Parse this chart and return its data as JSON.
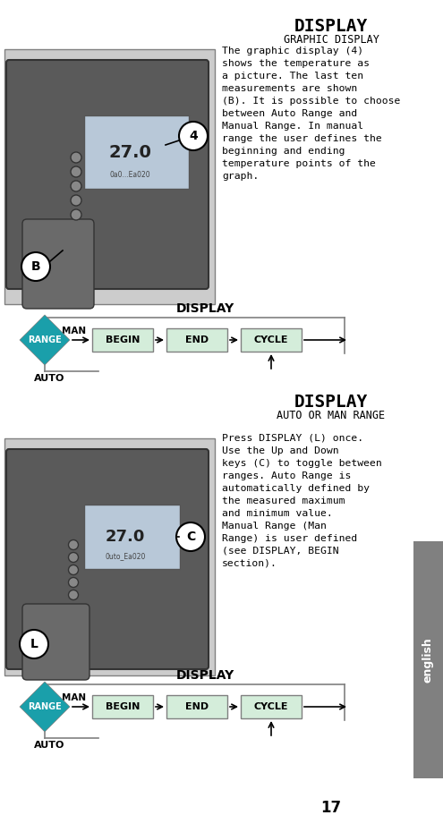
{
  "title": "DISPLAY",
  "subtitle": "GRAPHIC DISPLAY",
  "title2": "DISPLAY",
  "subtitle2": "AUTO OR MAN RANGE",
  "bg_color": "#ffffff",
  "sidebar_color": "#808080",
  "sidebar_text": "english",
  "sidebar_text_color": "#ffffff",
  "diamond_color": "#1a9faa",
  "diamond_text": "RANGE",
  "box_color": "#d4edda",
  "box_border": "#aaaaaa",
  "box_texts": [
    "BEGIN",
    "END",
    "CYCLE"
  ],
  "man_label": "MAN",
  "auto_label": "AUTO",
  "display_label": "DISPLAY",
  "para1": "The graphic display (4)\nshows the temperature as\na picture. The last ten\nmeasurements are shown\n(B). It is possible to choose\nbetween Auto Range and\nManual Range. In manual\nrange the user defines the\nbeginning and ending\ntemperature points of the\ngraph.",
  "para2": "Press DISPLAY (L) once.\nUse the Up and Down\nkeys (C) to toggle between\nranges. Auto Range is\nautomatically defined by\nthe measured maximum\nand minimum value.\nManual Range (Man\nRange) is user defined\n(see DISPLAY, BEGIN\nsection).",
  "page_num": "17",
  "label_4_text": "4",
  "label_B_text": "B",
  "label_C_text": "C",
  "label_L_text": "L"
}
